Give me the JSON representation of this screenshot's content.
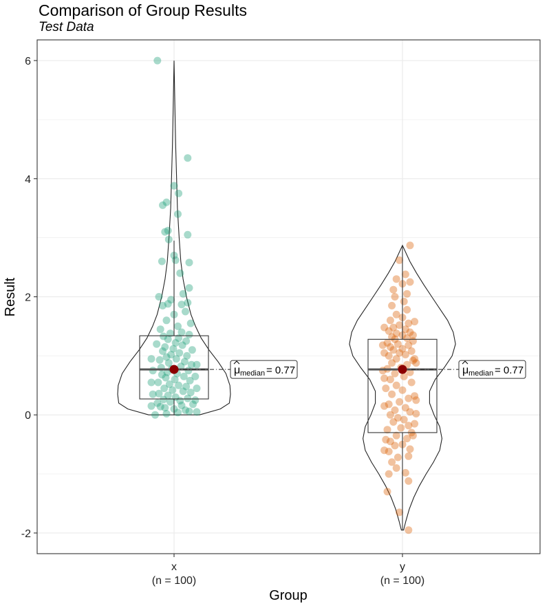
{
  "chart_data": {
    "type": "violin-box-scatter",
    "title": "Comparison of Group Results",
    "subtitle": "Test Data",
    "xlabel": "Group",
    "ylabel": "Result",
    "ylim": [
      -2.35,
      6.35
    ],
    "yticks": [
      "-2",
      "0",
      "2",
      "4",
      "6"
    ],
    "ytick_values": [
      -2,
      0,
      2,
      4,
      6
    ],
    "grid": true,
    "groups": [
      {
        "label": "x",
        "count_label": "(n = 100)",
        "color": "#1b9e77",
        "median": 0.77,
        "median_label": "= 0.77",
        "box": {
          "q1": 0.27,
          "median": 0.77,
          "q3": 1.34,
          "whisker_low": 0.0,
          "whisker_high": 2.95
        },
        "violin": {
          "y": [
            0.0,
            0.1,
            0.2,
            0.35,
            0.5,
            0.7,
            0.9,
            1.1,
            1.3,
            1.5,
            1.7,
            2.0,
            2.3,
            2.6,
            3.0,
            3.5,
            4.0,
            4.5,
            5.0,
            5.5,
            6.0
          ],
          "w": [
            0.45,
            0.82,
            0.98,
            1.0,
            0.99,
            0.92,
            0.78,
            0.62,
            0.48,
            0.38,
            0.3,
            0.22,
            0.16,
            0.12,
            0.09,
            0.06,
            0.045,
            0.03,
            0.02,
            0.01,
            0.0
          ]
        },
        "points": [
          [
            0.0,
            0.75
          ],
          [
            0.02,
            0.9
          ],
          [
            0.04,
            1.05
          ],
          [
            0.06,
            1.2
          ],
          [
            0.08,
            1.15
          ],
          [
            0.1,
            1.0
          ],
          [
            0.12,
            0.88
          ],
          [
            0.14,
            0.82
          ],
          [
            0.16,
            1.1
          ],
          [
            0.18,
            1.25
          ],
          [
            0.2,
            0.78
          ],
          [
            0.22,
            0.95
          ],
          [
            0.24,
            1.08
          ],
          [
            0.26,
            0.86
          ],
          [
            0.28,
            1.18
          ],
          [
            0.3,
            1.02
          ],
          [
            0.33,
            0.92
          ],
          [
            0.36,
            0.8
          ],
          [
            0.38,
            1.22
          ],
          [
            0.4,
            1.12
          ],
          [
            0.42,
            0.98
          ],
          [
            0.45,
            0.87
          ],
          [
            0.48,
            1.16
          ],
          [
            0.5,
            1.06
          ],
          [
            0.52,
            0.94
          ],
          [
            0.55,
            0.79
          ],
          [
            0.58,
            1.21
          ],
          [
            0.6,
            1.01
          ],
          [
            0.63,
            0.89
          ],
          [
            0.65,
            1.13
          ],
          [
            0.68,
            0.84
          ],
          [
            0.7,
            1.04
          ],
          [
            0.72,
            0.91
          ],
          [
            0.75,
            1.19
          ],
          [
            0.78,
            0.97
          ],
          [
            0.8,
            0.83
          ],
          [
            0.82,
            1.09
          ],
          [
            0.85,
            1.23
          ],
          [
            0.88,
            0.93
          ],
          [
            0.9,
            1.14
          ],
          [
            0.93,
            0.81
          ],
          [
            0.95,
            1.03
          ],
          [
            0.98,
            0.9
          ],
          [
            1.0,
            1.17
          ],
          [
            1.02,
            0.96
          ],
          [
            1.05,
            1.07
          ],
          [
            1.08,
            0.85
          ],
          [
            1.1,
            1.24
          ],
          [
            1.12,
            0.99
          ],
          [
            1.15,
            0.88
          ],
          [
            1.18,
            1.11
          ],
          [
            1.2,
            0.77
          ],
          [
            1.22,
            1.02
          ],
          [
            1.25,
            1.16
          ],
          [
            1.28,
            0.92
          ],
          [
            1.3,
            1.06
          ],
          [
            1.33,
            0.86
          ],
          [
            1.36,
            1.2
          ],
          [
            1.38,
            0.95
          ],
          [
            1.4,
            1.1
          ],
          [
            1.45,
            0.82
          ],
          [
            1.5,
            1.05
          ],
          [
            1.55,
            1.22
          ],
          [
            1.6,
            0.9
          ],
          [
            1.7,
            1.0
          ],
          [
            1.75,
            1.15
          ],
          [
            1.85,
            0.85
          ],
          [
            1.87,
            1.1
          ],
          [
            1.88,
            0.92
          ],
          [
            1.9,
            1.18
          ],
          [
            1.95,
            0.96
          ],
          [
            2.0,
            0.8
          ],
          [
            2.05,
            1.12
          ],
          [
            2.15,
            1.2
          ],
          [
            2.4,
            1.08
          ],
          [
            2.58,
            1.2
          ],
          [
            2.6,
            0.84
          ],
          [
            2.62,
            1.02
          ],
          [
            2.7,
            1.0
          ],
          [
            2.97,
            0.93
          ],
          [
            3.05,
            1.18
          ],
          [
            3.1,
            0.88
          ],
          [
            3.12,
            0.92
          ],
          [
            3.4,
            1.05
          ],
          [
            3.55,
            0.85
          ],
          [
            3.6,
            0.9
          ],
          [
            3.75,
            1.06
          ],
          [
            3.88,
            1.0
          ],
          [
            4.35,
            1.18
          ],
          [
            6.0,
            0.78
          ],
          [
            0.05,
            1.3
          ],
          [
            0.15,
            0.7
          ],
          [
            0.25,
            1.28
          ],
          [
            0.35,
            0.72
          ],
          [
            0.45,
            1.3
          ],
          [
            0.55,
            0.7
          ],
          [
            0.65,
            1.28
          ],
          [
            0.75,
            0.72
          ],
          [
            0.85,
            1.3
          ],
          [
            0.95,
            0.7
          ]
        ]
      },
      {
        "label": "y",
        "count_label": "(n = 100)",
        "color": "#d95f02",
        "median": 0.77,
        "median_label": "= 0.77",
        "box": {
          "q1": -0.3,
          "median": 0.77,
          "q3": 1.28,
          "whisker_low": -1.95,
          "whisker_high": 2.87
        },
        "violin": {
          "y": [
            -1.95,
            -1.8,
            -1.6,
            -1.4,
            -1.2,
            -1.0,
            -0.8,
            -0.6,
            -0.4,
            -0.2,
            0.0,
            0.2,
            0.4,
            0.6,
            0.8,
            1.0,
            1.2,
            1.4,
            1.6,
            1.8,
            2.0,
            2.2,
            2.4,
            2.6,
            2.87
          ],
          "w": [
            0.02,
            0.06,
            0.12,
            0.2,
            0.3,
            0.42,
            0.55,
            0.66,
            0.7,
            0.66,
            0.56,
            0.48,
            0.48,
            0.58,
            0.74,
            0.88,
            0.94,
            0.9,
            0.8,
            0.66,
            0.52,
            0.38,
            0.25,
            0.13,
            0.0
          ]
        },
        "points": [
          [
            -1.95,
            1.08
          ],
          [
            -1.65,
            0.96
          ],
          [
            -1.3,
            0.8
          ],
          [
            -1.12,
            1.08
          ],
          [
            -1.0,
            0.82
          ],
          [
            -0.98,
            1.04
          ],
          [
            -0.9,
            0.92
          ],
          [
            -0.8,
            0.86
          ],
          [
            -0.72,
            0.94
          ],
          [
            -0.7,
            1.08
          ],
          [
            -0.62,
            0.82
          ],
          [
            -0.58,
            1.1
          ],
          [
            -0.52,
            0.9
          ],
          [
            -0.5,
            1.0
          ],
          [
            -0.45,
            0.84
          ],
          [
            -0.4,
            1.06
          ],
          [
            -0.35,
            0.92
          ],
          [
            -0.3,
            1.12
          ],
          [
            -0.25,
            0.8
          ],
          [
            -0.22,
            0.98
          ],
          [
            -0.18,
            1.08
          ],
          [
            -0.12,
            0.88
          ],
          [
            -0.08,
            1.02
          ],
          [
            -0.05,
            0.94
          ],
          [
            0.0,
            0.84
          ],
          [
            0.05,
            1.1
          ],
          [
            0.08,
            0.9
          ],
          [
            0.12,
            1.04
          ],
          [
            0.18,
            0.82
          ],
          [
            0.22,
            0.96
          ],
          [
            0.28,
            1.08
          ],
          [
            0.35,
            0.86
          ],
          [
            0.42,
            1.0
          ],
          [
            0.5,
            0.92
          ],
          [
            0.55,
            1.12
          ],
          [
            0.6,
            0.84
          ],
          [
            0.65,
            1.02
          ],
          [
            0.7,
            0.9
          ],
          [
            0.72,
            1.1
          ],
          [
            0.78,
            0.8
          ],
          [
            0.8,
            0.98
          ],
          [
            0.85,
            1.06
          ],
          [
            0.88,
            0.86
          ],
          [
            0.92,
            1.14
          ],
          [
            0.95,
            0.92
          ],
          [
            1.0,
            0.82
          ],
          [
            1.02,
            1.04
          ],
          [
            1.05,
            0.96
          ],
          [
            1.08,
            1.12
          ],
          [
            1.1,
            0.88
          ],
          [
            1.12,
            1.0
          ],
          [
            1.15,
            0.84
          ],
          [
            1.18,
            1.08
          ],
          [
            1.2,
            0.94
          ],
          [
            1.22,
            0.8
          ],
          [
            1.25,
            1.14
          ],
          [
            1.28,
            0.9
          ],
          [
            1.3,
            1.06
          ],
          [
            1.32,
            0.86
          ],
          [
            1.35,
            1.0
          ],
          [
            1.38,
            0.92
          ],
          [
            1.4,
            1.1
          ],
          [
            1.42,
            0.82
          ],
          [
            1.45,
            1.04
          ],
          [
            1.48,
            0.88
          ],
          [
            1.52,
            0.96
          ],
          [
            1.55,
            1.08
          ],
          [
            1.6,
            0.84
          ],
          [
            1.65,
            1.0
          ],
          [
            1.7,
            0.92
          ],
          [
            1.78,
            1.06
          ],
          [
            1.85,
            0.86
          ],
          [
            1.92,
            1.02
          ],
          [
            2.0,
            0.9
          ],
          [
            2.05,
            1.06
          ],
          [
            2.12,
            0.88
          ],
          [
            2.22,
            1.0
          ],
          [
            2.25,
            1.1
          ],
          [
            2.3,
            0.92
          ],
          [
            2.38,
            1.04
          ],
          [
            2.62,
            0.96
          ],
          [
            2.87,
            1.1
          ],
          [
            0.15,
            0.76
          ],
          [
            0.45,
            0.78
          ],
          [
            0.75,
            0.74
          ],
          [
            1.05,
            0.76
          ],
          [
            -0.15,
            1.16
          ],
          [
            0.25,
            1.18
          ],
          [
            0.95,
            1.16
          ],
          [
            1.35,
            1.14
          ],
          [
            -0.6,
            0.76
          ],
          [
            -0.35,
            1.14
          ],
          [
            0.62,
            0.76
          ],
          [
            1.18,
            0.74
          ],
          [
            1.58,
            1.16
          ],
          [
            0.32,
            1.16
          ],
          [
            -0.42,
            0.78
          ],
          [
            0.02,
            1.18
          ],
          [
            0.88,
            1.18
          ],
          [
            1.48,
            0.76
          ]
        ]
      }
    ]
  }
}
